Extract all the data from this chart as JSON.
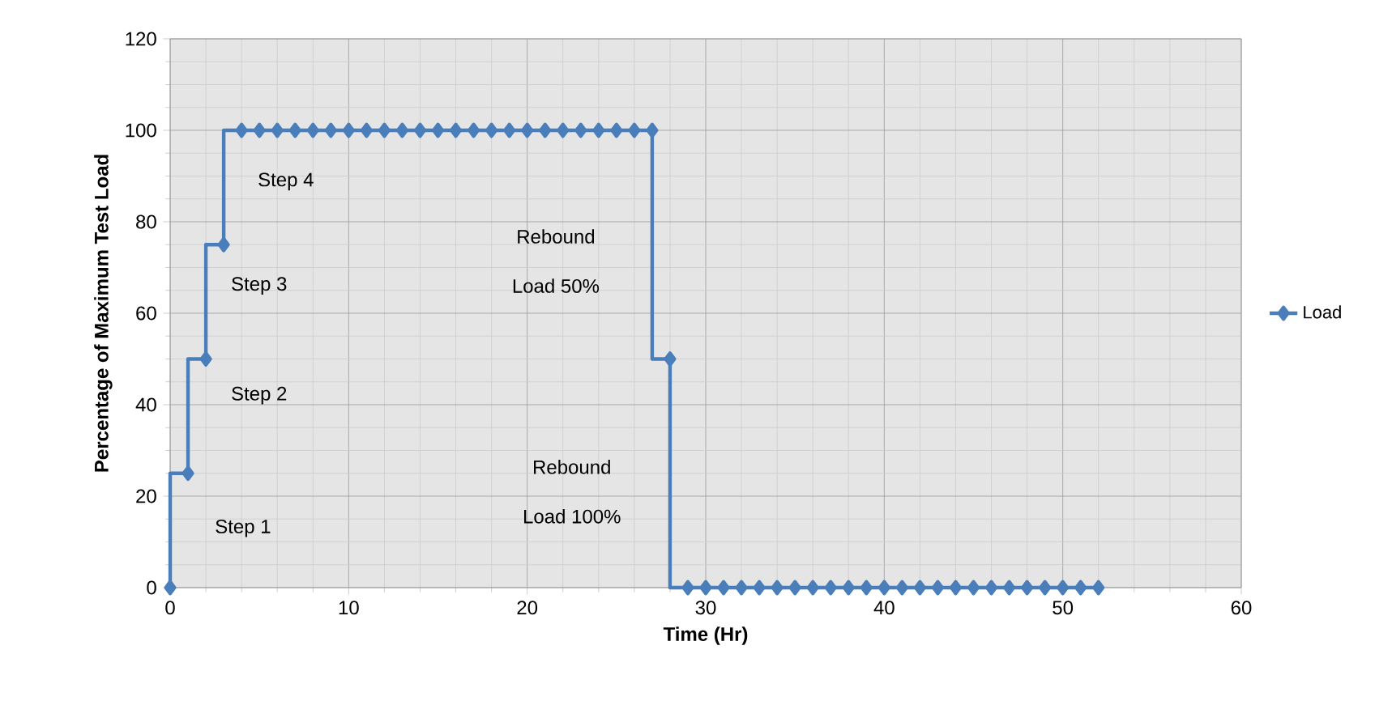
{
  "chart_data": {
    "type": "step",
    "xlabel": "Time (Hr)",
    "ylabel": "Percentage of Maximum Test Load",
    "x": [
      0,
      1,
      2,
      3,
      4,
      5,
      6,
      7,
      8,
      9,
      10,
      11,
      12,
      13,
      14,
      15,
      16,
      17,
      18,
      19,
      20,
      21,
      22,
      23,
      24,
      25,
      26,
      27,
      28,
      29,
      30,
      31,
      32,
      33,
      34,
      35,
      36,
      37,
      38,
      39,
      40,
      41,
      42,
      43,
      44,
      45,
      46,
      47,
      48,
      49,
      50,
      51,
      52
    ],
    "series": [
      {
        "name": "Load",
        "color": "#4a7ebb",
        "values": [
          0,
          25,
          50,
          75,
          100,
          100,
          100,
          100,
          100,
          100,
          100,
          100,
          100,
          100,
          100,
          100,
          100,
          100,
          100,
          100,
          100,
          100,
          100,
          100,
          100,
          100,
          100,
          100,
          50,
          0,
          0,
          0,
          0,
          0,
          0,
          0,
          0,
          0,
          0,
          0,
          0,
          0,
          0,
          0,
          0,
          0,
          0,
          0,
          0,
          0,
          0,
          0,
          0
        ]
      }
    ],
    "xlim": [
      0,
      60
    ],
    "xticks": [
      0,
      10,
      20,
      30,
      40,
      50,
      60
    ],
    "ylim": [
      0,
      120
    ],
    "yticks": [
      0,
      20,
      40,
      60,
      80,
      100,
      120
    ],
    "grid": true,
    "legend": "right",
    "marker": "diamond",
    "line_style": "solid",
    "annotations": [
      "Step 1",
      "Step 2",
      "Step 3",
      "Step 4",
      "Rebound",
      "Load 50%",
      "Rebound",
      "Load 100%"
    ]
  }
}
